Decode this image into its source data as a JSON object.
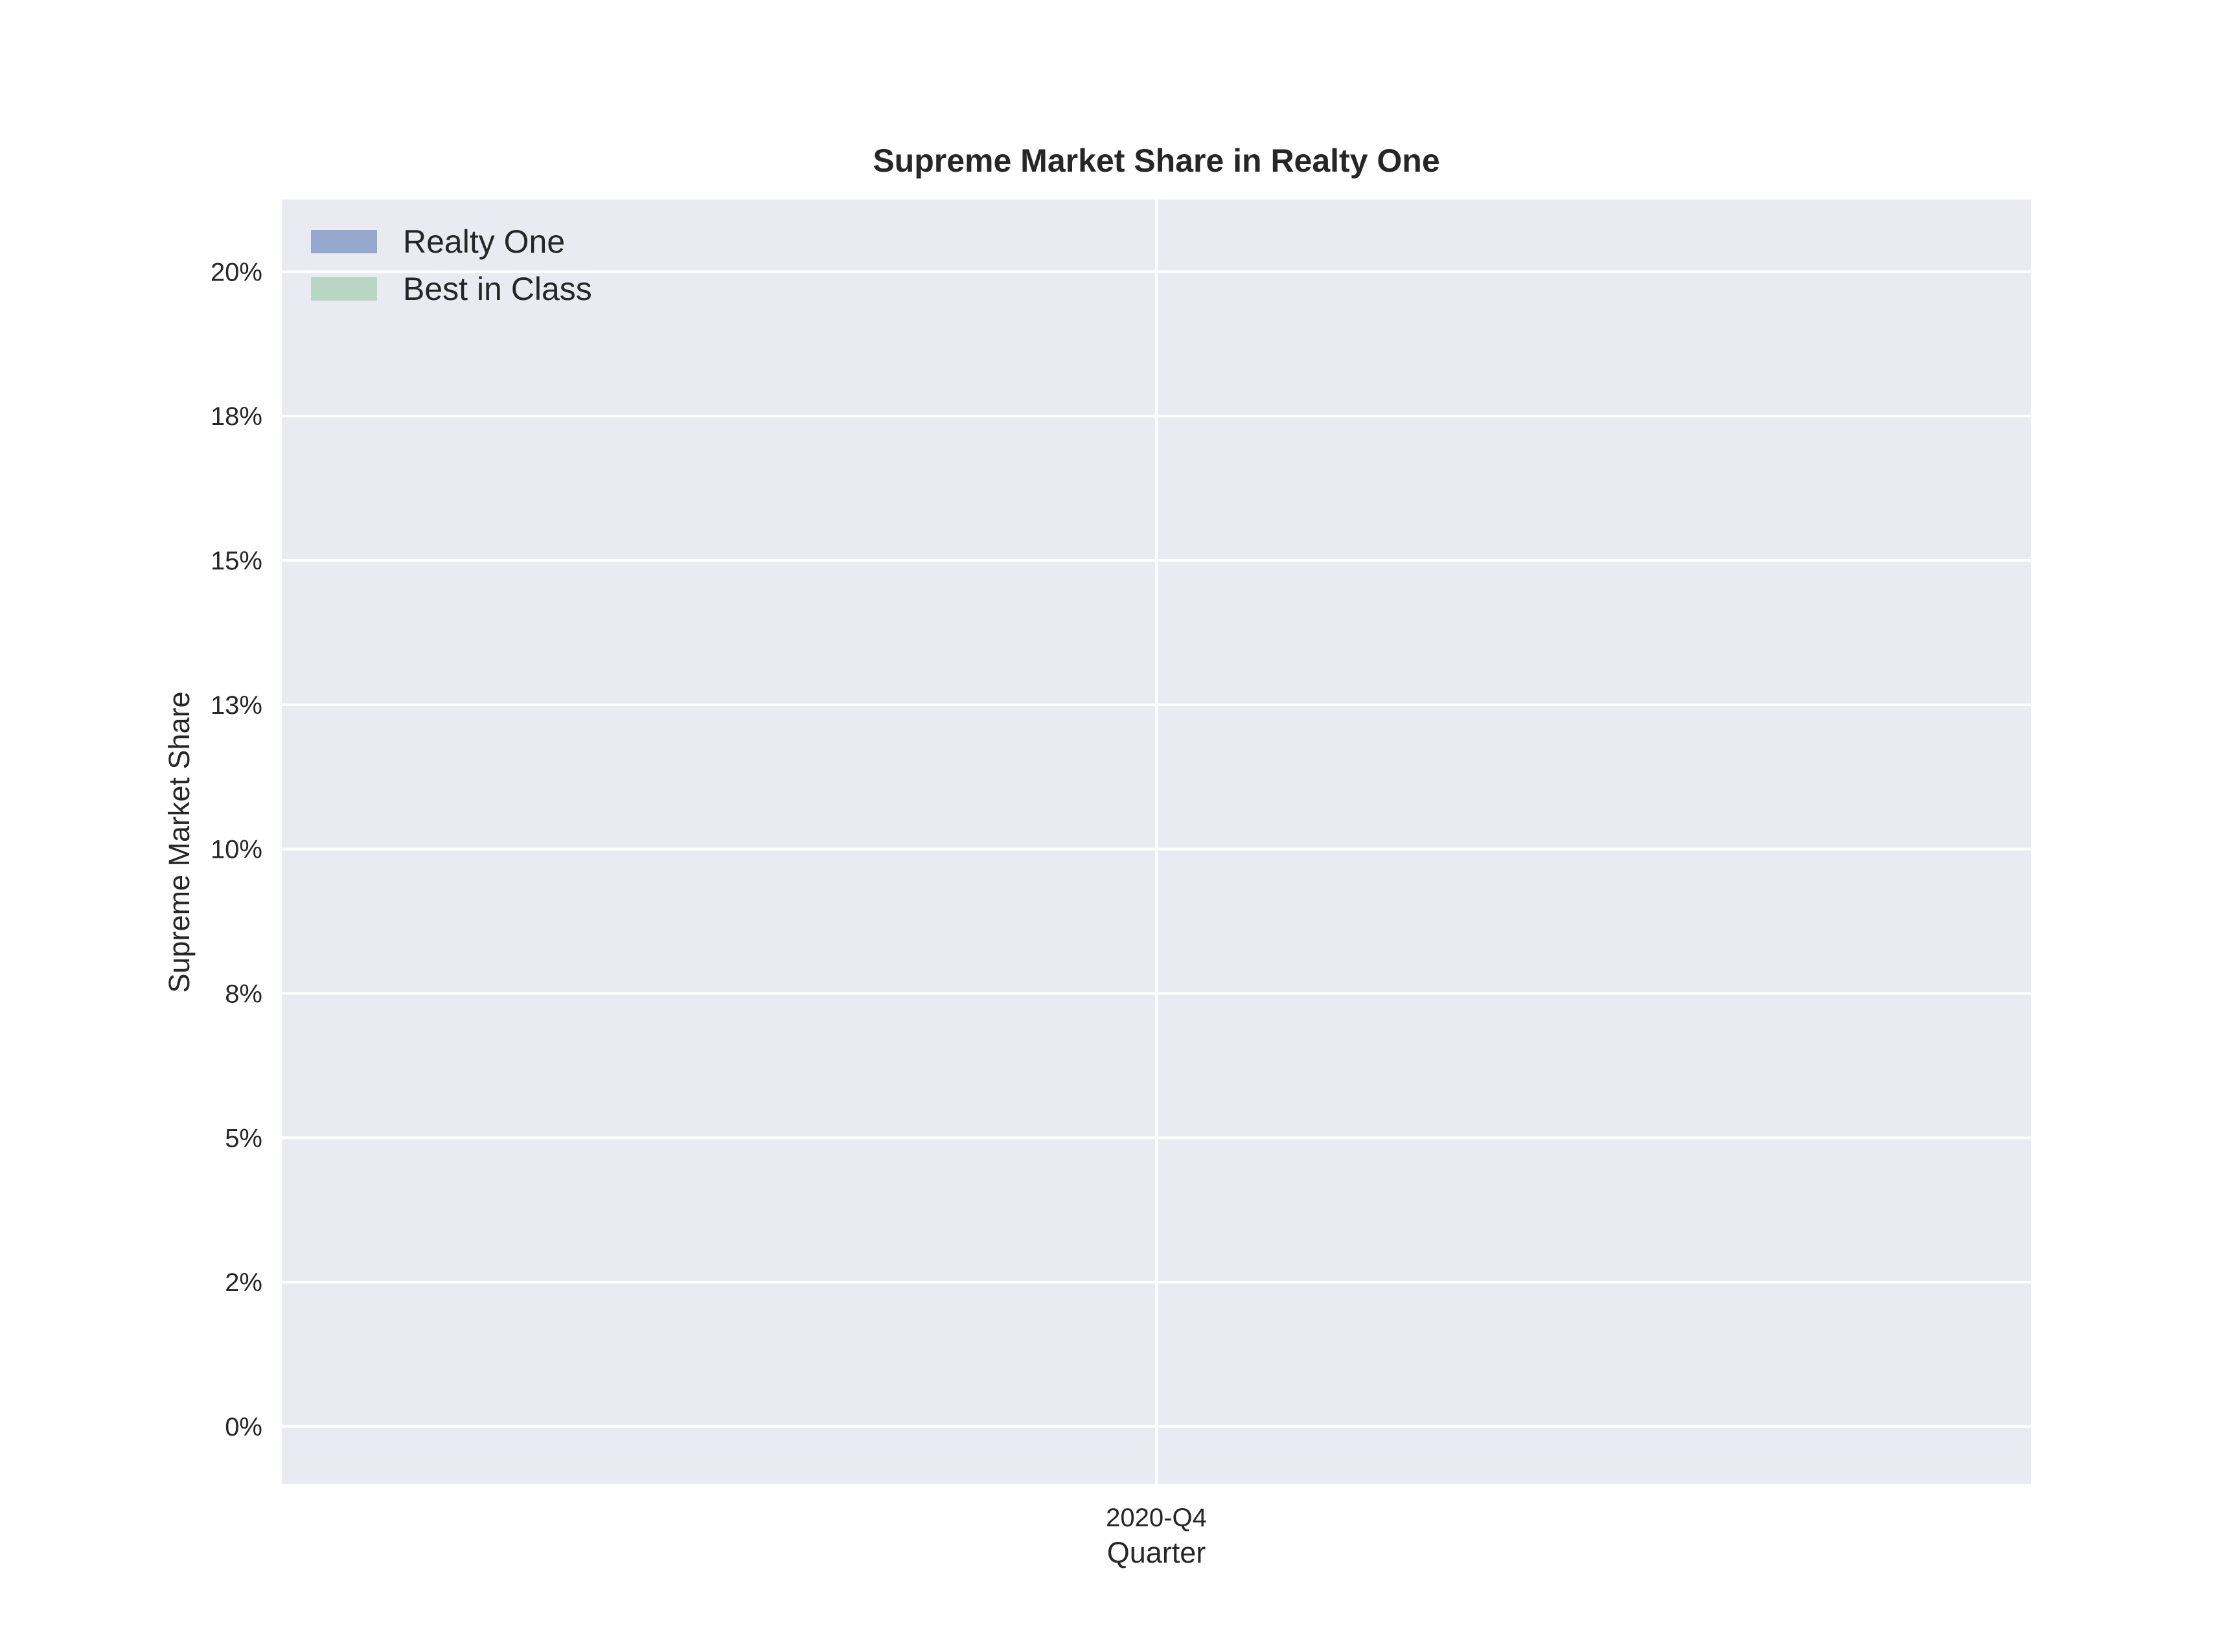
{
  "chart_data": {
    "type": "bar",
    "title": "Supreme Market Share in Realty One",
    "xlabel": "Quarter",
    "ylabel": "Supreme Market Share",
    "categories": [
      "2020-Q4"
    ],
    "series": [
      {
        "name": "Realty One",
        "values": [
          0
        ],
        "color": "#97a8cf"
      },
      {
        "name": "Best in Class",
        "values": [
          0
        ],
        "color": "#b9d6c4"
      }
    ],
    "yticks": [
      {
        "value": 0.0,
        "label": "0%"
      },
      {
        "value": 2.5,
        "label": "2%"
      },
      {
        "value": 5.0,
        "label": "5%"
      },
      {
        "value": 7.5,
        "label": "8%"
      },
      {
        "value": 10.0,
        "label": "10%"
      },
      {
        "value": 12.5,
        "label": "13%"
      },
      {
        "value": 15.0,
        "label": "15%"
      },
      {
        "value": 17.5,
        "label": "18%"
      },
      {
        "value": 20.0,
        "label": "20%"
      }
    ],
    "ylim": [
      -1.0,
      21.25
    ],
    "grid": true,
    "legend_position": "top-left",
    "colors": {
      "plot_background": "#eaeaf2",
      "grid": "#ffffff"
    }
  }
}
